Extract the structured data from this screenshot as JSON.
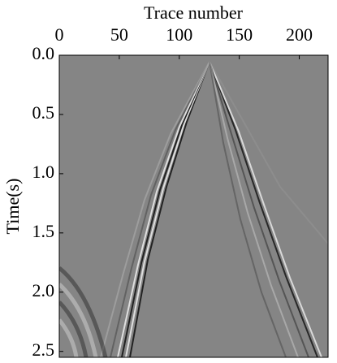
{
  "chart_data": {
    "type": "seismic",
    "xlabel": "Trace number",
    "ylabel": "Time(s)",
    "xlim": [
      0,
      224
    ],
    "xticks": [
      0,
      50,
      100,
      150,
      200
    ],
    "ylim": [
      0,
      2.55
    ],
    "yticks": [
      {
        "value": 0,
        "label": "0.0"
      },
      0.5,
      {
        "value": 1,
        "label": "1.0"
      },
      1.5,
      {
        "value": 2,
        "label": "2.0"
      },
      2.5
    ]
  }
}
